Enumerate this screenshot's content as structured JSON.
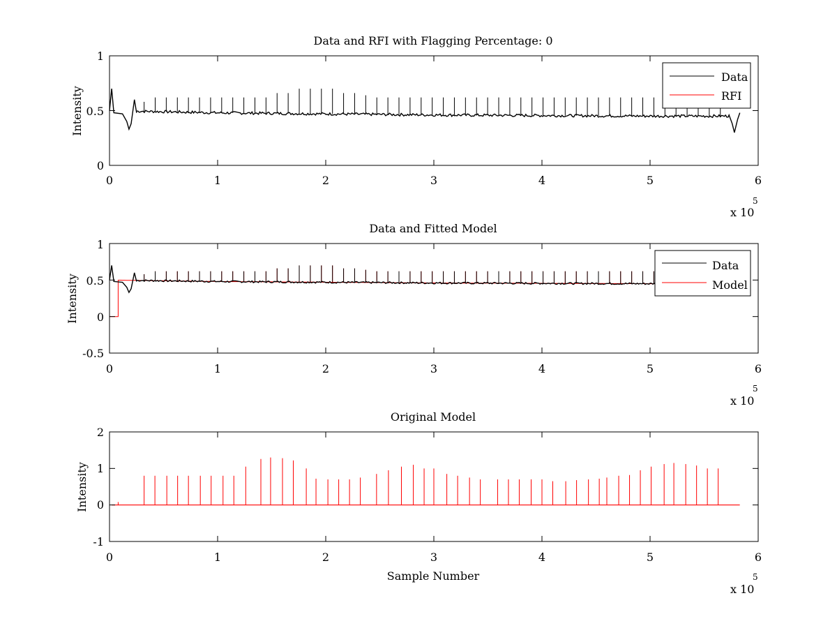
{
  "chart_data": [
    {
      "type": "line",
      "title": "Data and RFI with Flagging Percentage: 0",
      "xlabel": "",
      "ylabel": "Intensity",
      "xlim": [
        0,
        6
      ],
      "ylim": [
        0,
        1
      ],
      "x_multiplier_label": "x 10",
      "x_multiplier_exponent": "5",
      "xticks": [
        "0",
        "1",
        "2",
        "3",
        "4",
        "5",
        "6"
      ],
      "yticks": [
        "0",
        "0.5",
        "1"
      ],
      "legend": {
        "position": "top-right",
        "entries": [
          "Data",
          "RFI"
        ]
      },
      "series": [
        {
          "name": "Data",
          "color": "#000000",
          "baseline": [
            [
              0.0,
              0.5
            ],
            [
              1.0,
              0.48
            ],
            [
              2.0,
              0.47
            ],
            [
              3.0,
              0.46
            ],
            [
              4.0,
              0.455
            ],
            [
              5.0,
              0.45
            ],
            [
              5.75,
              0.45
            ]
          ],
          "start_bump": [
            [
              0.0,
              0.5
            ],
            [
              0.02,
              0.7
            ],
            [
              0.04,
              0.48
            ],
            [
              0.12,
              0.47
            ],
            [
              0.16,
              0.4
            ],
            [
              0.18,
              0.33
            ],
            [
              0.2,
              0.38
            ],
            [
              0.23,
              0.6
            ],
            [
              0.25,
              0.48
            ]
          ],
          "end_dip": [
            [
              5.73,
              0.46
            ],
            [
              5.76,
              0.38
            ],
            [
              5.78,
              0.3
            ],
            [
              5.81,
              0.42
            ],
            [
              5.83,
              0.48
            ]
          ]
        },
        {
          "name": "RFI",
          "color": "#ff0000",
          "values": []
        }
      ],
      "spike_heights": [
        0.58,
        0.62,
        0.62,
        0.62,
        0.62,
        0.62,
        0.62,
        0.62,
        0.62,
        0.62,
        0.62,
        0.62,
        0.66,
        0.66,
        0.7,
        0.7,
        0.7,
        0.7,
        0.66,
        0.66,
        0.64,
        0.62,
        0.62,
        0.62,
        0.62,
        0.62,
        0.62,
        0.62,
        0.62,
        0.62,
        0.62,
        0.62,
        0.62,
        0.62,
        0.62,
        0.62,
        0.62,
        0.62,
        0.62,
        0.62,
        0.62,
        0.62,
        0.62,
        0.62,
        0.62,
        0.62,
        0.62,
        0.62,
        0.62,
        0.62,
        0.6,
        0.6,
        0.6,
        0.6
      ]
    },
    {
      "type": "line",
      "title": "Data and Fitted Model",
      "xlabel": "",
      "ylabel": "Intensity",
      "xlim": [
        0,
        6
      ],
      "ylim": [
        -0.5,
        1
      ],
      "x_multiplier_label": "x 10",
      "x_multiplier_exponent": "5",
      "xticks": [
        "0",
        "1",
        "2",
        "3",
        "4",
        "5",
        "6"
      ],
      "yticks": [
        "-0.5",
        "0",
        "0.5",
        "1"
      ],
      "legend": {
        "position": "top-right",
        "entries": [
          "Data",
          "Model"
        ]
      },
      "series": [
        {
          "name": "Data",
          "color": "#000000"
        },
        {
          "name": "Model",
          "color": "#ff0000",
          "step": [
            [
              0.0,
              0.0
            ],
            [
              0.08,
              0.0
            ],
            [
              0.08,
              0.48
            ]
          ]
        }
      ]
    },
    {
      "type": "line",
      "title": "Original Model",
      "xlabel": "Sample Number",
      "ylabel": "Intensity",
      "xlim": [
        0,
        6
      ],
      "ylim": [
        -1,
        2
      ],
      "x_multiplier_label": "x 10",
      "x_multiplier_exponent": "5",
      "xticks": [
        "0",
        "1",
        "2",
        "3",
        "4",
        "5",
        "6"
      ],
      "yticks": [
        "-1",
        "0",
        "1",
        "2"
      ],
      "series": [
        {
          "name": "Model",
          "color": "#ff0000",
          "baseline": 0.0,
          "spikes_x": [
            0.08,
            0.32,
            0.42,
            0.53,
            0.63,
            0.73,
            0.84,
            0.94,
            1.05,
            1.15,
            1.26,
            1.4,
            1.49,
            1.6,
            1.7,
            1.82,
            1.91,
            2.02,
            2.12,
            2.22,
            2.32,
            2.47,
            2.58,
            2.7,
            2.81,
            2.91,
            3.0,
            3.12,
            3.22,
            3.33,
            3.43,
            3.59,
            3.69,
            3.79,
            3.9,
            4.0,
            4.1,
            4.22,
            4.32,
            4.43,
            4.53,
            4.6,
            4.71,
            4.81,
            4.91,
            5.01,
            5.13,
            5.22,
            5.33,
            5.43,
            5.53,
            5.63
          ],
          "spikes_y": [
            0.08,
            0.8,
            0.8,
            0.8,
            0.8,
            0.8,
            0.8,
            0.8,
            0.8,
            0.8,
            1.05,
            1.26,
            1.3,
            1.28,
            1.22,
            1.0,
            0.72,
            0.7,
            0.7,
            0.7,
            0.75,
            0.85,
            0.95,
            1.05,
            1.1,
            1.0,
            1.0,
            0.85,
            0.8,
            0.75,
            0.7,
            0.7,
            0.7,
            0.7,
            0.7,
            0.7,
            0.65,
            0.65,
            0.68,
            0.7,
            0.72,
            0.75,
            0.8,
            0.82,
            0.95,
            1.05,
            1.12,
            1.15,
            1.12,
            1.08,
            1.0,
            1.0
          ]
        }
      ]
    }
  ]
}
